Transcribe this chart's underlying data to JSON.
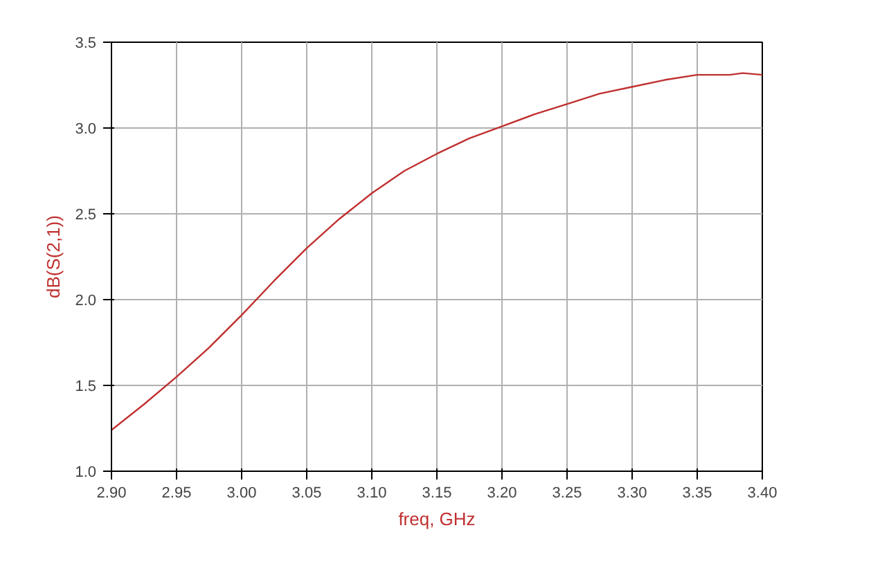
{
  "chart_data": {
    "type": "line",
    "xlabel": "freq, GHz",
    "ylabel": "dB(S(2,1))",
    "x": [
      2.9,
      2.925,
      2.95,
      2.975,
      3.0,
      3.025,
      3.05,
      3.075,
      3.1,
      3.125,
      3.15,
      3.175,
      3.2,
      3.225,
      3.25,
      3.275,
      3.3,
      3.325,
      3.35,
      3.375,
      3.385,
      3.4
    ],
    "series": [
      {
        "color": "#c03030",
        "values": [
          1.24,
          1.39,
          1.55,
          1.72,
          1.91,
          2.11,
          2.3,
          2.47,
          2.62,
          2.75,
          2.85,
          2.94,
          3.01,
          3.08,
          3.14,
          3.2,
          3.24,
          3.28,
          3.31,
          3.31,
          3.32,
          3.31
        ]
      }
    ],
    "xlim": [
      2.9,
      3.4
    ],
    "ylim": [
      1.0,
      3.5
    ],
    "xticks": [
      {
        "value": 2.9,
        "label": "2.90"
      },
      {
        "value": 2.95,
        "label": "2.95"
      },
      {
        "value": 3.0,
        "label": "3.00"
      },
      {
        "value": 3.05,
        "label": "3.05"
      },
      {
        "value": 3.1,
        "label": "3.10"
      },
      {
        "value": 3.15,
        "label": "3.15"
      },
      {
        "value": 3.2,
        "label": "3.20"
      },
      {
        "value": 3.25,
        "label": "3.25"
      },
      {
        "value": 3.3,
        "label": "3.30"
      },
      {
        "value": 3.35,
        "label": "3.35"
      },
      {
        "value": 3.4,
        "label": "3.40"
      }
    ],
    "yticks": [
      {
        "value": 1.0,
        "label": "1.0"
      },
      {
        "value": 1.5,
        "label": "1.5"
      },
      {
        "value": 2.0,
        "label": "2.0"
      },
      {
        "value": 2.5,
        "label": "2.5"
      },
      {
        "value": 3.0,
        "label": "3.0"
      },
      {
        "value": 3.5,
        "label": "3.5"
      }
    ],
    "grid": true
  }
}
